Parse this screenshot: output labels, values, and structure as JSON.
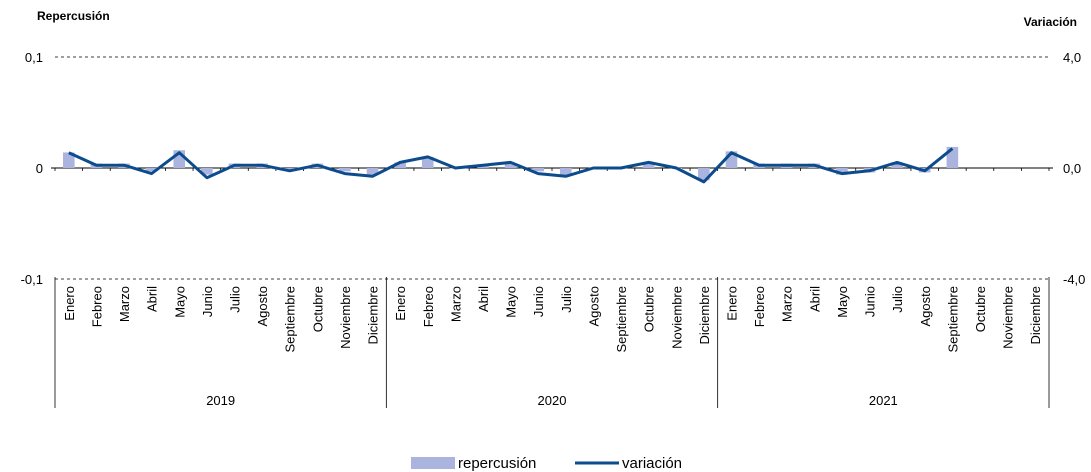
{
  "chart_data": {
    "type": "bar",
    "left_axis_title": "Repercusión",
    "right_axis_title": "Variación",
    "left_axis": {
      "ylim": [
        -0.1,
        0.1
      ],
      "ticks": [
        "0,1",
        "0",
        "-0,1"
      ]
    },
    "right_axis": {
      "ylim": [
        -4.0,
        4.0
      ],
      "ticks": [
        "4,0",
        "0,0",
        "-4,0"
      ]
    },
    "categories": [
      "Enero",
      "Febreo",
      "Marzo",
      "Abril",
      "Mayo",
      "Junio",
      "Julio",
      "Agosto",
      "Septiembre",
      "Octubre",
      "Noviembre",
      "Diciembre",
      "Enero",
      "Febreo",
      "Marzo",
      "Abril",
      "Mayo",
      "Junio",
      "Julio",
      "Agosto",
      "Septiembre",
      "Octubre",
      "Noviembre",
      "Diciembre",
      "Enero",
      "Febreo",
      "Marzo",
      "Abril",
      "Mayo",
      "Junio",
      "Julio",
      "Agosto",
      "Septiembre",
      "Octubre",
      "Noviembre",
      "Diciembre"
    ],
    "groups": [
      {
        "label": "2019",
        "count": 12
      },
      {
        "label": "2020",
        "count": 12
      },
      {
        "label": "2021",
        "count": 12
      }
    ],
    "series": [
      {
        "name": "repercusión",
        "type": "bar",
        "axis": "left",
        "color": "#aab4df",
        "values": [
          0.014,
          0.004,
          0.004,
          -0.003,
          0.016,
          -0.006,
          0.004,
          0.004,
          -0.002,
          0.004,
          -0.003,
          -0.006,
          0.005,
          0.01,
          0.0,
          0.003,
          0.004,
          -0.003,
          -0.007,
          0.0,
          0.0,
          0.004,
          0.0,
          -0.011,
          0.015,
          0.004,
          0.004,
          0.004,
          -0.006,
          -0.004,
          0.004,
          -0.004,
          0.019,
          null,
          null,
          null
        ]
      },
      {
        "name": "variación",
        "type": "line",
        "axis": "right",
        "color": "#0d4c8c",
        "values": [
          0.55,
          0.1,
          0.1,
          -0.2,
          0.55,
          -0.35,
          0.1,
          0.1,
          -0.1,
          0.1,
          -0.2,
          -0.3,
          0.2,
          0.4,
          0.0,
          0.1,
          0.2,
          -0.2,
          -0.3,
          0.0,
          0.0,
          0.2,
          0.0,
          -0.5,
          0.55,
          0.1,
          0.1,
          0.1,
          -0.2,
          -0.1,
          0.2,
          -0.1,
          0.7,
          null,
          null,
          null
        ]
      }
    ],
    "legend": {
      "position": "bottom-center"
    },
    "grid": "dashed horizontal at axis ticks"
  }
}
